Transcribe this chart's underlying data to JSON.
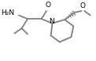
{
  "bg_color": "#ffffff",
  "line_color": "#808080",
  "line_width": 1.3,
  "font_size": 6.5,
  "figsize": [
    1.22,
    0.78
  ],
  "dpi": 100,
  "NH2_label": "H₂N",
  "O_carbonyl": "O",
  "N_label": "N",
  "O_methoxy": "O"
}
